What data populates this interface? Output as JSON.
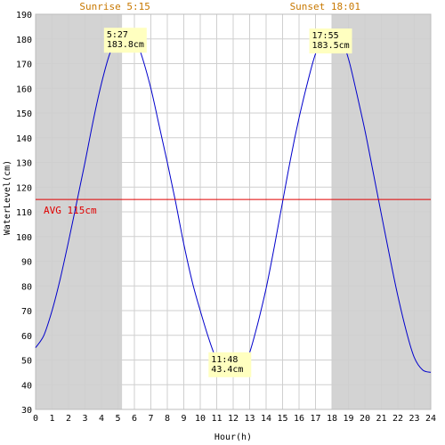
{
  "chart_data": {
    "type": "line",
    "xlabel": "Hour(h)",
    "ylabel": "WaterLevel(cm)",
    "xlim": [
      0,
      24
    ],
    "ylim": [
      30,
      190
    ],
    "x_ticks": [
      0,
      1,
      2,
      3,
      4,
      5,
      6,
      7,
      8,
      9,
      10,
      11,
      12,
      13,
      14,
      15,
      16,
      17,
      18,
      19,
      20,
      21,
      22,
      23,
      24
    ],
    "y_ticks": [
      30,
      40,
      50,
      60,
      70,
      80,
      90,
      100,
      110,
      120,
      130,
      140,
      150,
      160,
      170,
      180,
      190
    ],
    "grid": true,
    "sunrise": {
      "label": "Sunrise 5:15",
      "hour": 5.25
    },
    "sunset": {
      "label": "Sunset 18:01",
      "hour": 18.0167
    },
    "night_color": "#d3d3d3",
    "average": {
      "label": "AVG 115cm",
      "value": 115,
      "color": "#e00000"
    },
    "series": [
      {
        "color": "#0000cc",
        "x": [
          0,
          0.5,
          1,
          1.5,
          2,
          2.5,
          3,
          3.5,
          4,
          4.5,
          5,
          5.45,
          6,
          6.5,
          7,
          7.5,
          8,
          8.5,
          9,
          9.5,
          10,
          10.5,
          11,
          11.5,
          11.8,
          12.5,
          13,
          13.5,
          14,
          14.5,
          15,
          15.5,
          16,
          16.5,
          17,
          17.5,
          17.92,
          18.5,
          19,
          19.5,
          20,
          20.5,
          21,
          21.5,
          22,
          22.5,
          23,
          23.5,
          24
        ],
        "y": [
          55,
          60,
          70,
          83,
          98,
          114,
          130,
          147,
          162,
          174,
          181,
          183.8,
          181,
          172,
          160,
          145,
          130,
          114,
          97,
          82,
          70,
          59,
          50,
          45,
          43.4,
          45,
          53,
          65,
          79,
          96,
          114,
          132,
          148,
          162,
          174,
          181,
          183.5,
          181,
          172,
          158,
          143,
          126,
          109,
          92,
          76,
          62,
          51,
          46,
          45
        ]
      }
    ],
    "annotations": [
      {
        "time": "5:27",
        "value": "183.8cm",
        "x": 5.45,
        "y": 183.8
      },
      {
        "time": "11:48",
        "value": "43.4cm",
        "x": 11.8,
        "y": 43.4
      },
      {
        "time": "17:55",
        "value": "183.5cm",
        "x": 17.92,
        "y": 183.5
      }
    ]
  }
}
